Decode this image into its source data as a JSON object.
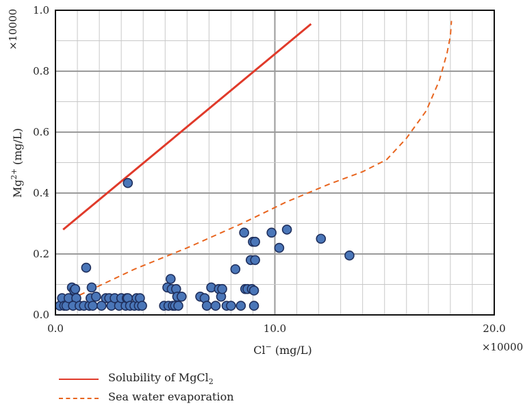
{
  "chart_data": {
    "type": "scatter",
    "xlabel_main": "Cl",
    "xlabel_sup": "−",
    "xlabel_unit": " (mg/L)",
    "ylabel_main": "Mg",
    "ylabel_sup": "2+",
    "ylabel_unit": " (mg/L)",
    "x_multiplier": "×10000",
    "y_multiplier": "×10000",
    "xlim": [
      0,
      20
    ],
    "ylim": [
      0,
      1.0
    ],
    "x_ticks": [
      "0.0",
      "10.0",
      "20.0"
    ],
    "y_ticks": [
      "0.0",
      "0.2",
      "0.4",
      "0.6",
      "0.8",
      "1.0"
    ],
    "grid": true,
    "colors": {
      "points": "#4a76b8",
      "point_edge": "#1f2f5c",
      "solubility": "#e03a2a",
      "evaporation": "#e8651f",
      "grid": "#c8c8c8",
      "grid_major": "#9a9a9a"
    },
    "series": [
      {
        "name": "Solubility of MgCl2",
        "legend_main": "Solubility of MgCl",
        "legend_sub": "2",
        "style": "solid",
        "points": [
          [
            0.35,
            0.28
          ],
          [
            11.65,
            0.955
          ]
        ]
      },
      {
        "name": "Sea water evaporation",
        "legend_main": "Sea water evaporation",
        "style": "dashed",
        "points": [
          [
            1.1,
            0.065
          ],
          [
            3.6,
            0.15
          ],
          [
            6.0,
            0.22
          ],
          [
            8.5,
            0.3
          ],
          [
            10.5,
            0.37
          ],
          [
            12.5,
            0.43
          ],
          [
            14.0,
            0.47
          ],
          [
            15.1,
            0.51
          ],
          [
            16.0,
            0.58
          ],
          [
            16.9,
            0.67
          ],
          [
            17.5,
            0.77
          ],
          [
            17.85,
            0.86
          ],
          [
            18.0,
            0.915
          ],
          [
            18.05,
            0.965
          ]
        ]
      },
      {
        "name": "samples",
        "type": "scatter",
        "points": [
          [
            0.2,
            0.03
          ],
          [
            0.3,
            0.055
          ],
          [
            0.4,
            0.03
          ],
          [
            0.5,
            0.03
          ],
          [
            0.6,
            0.055
          ],
          [
            0.75,
            0.09
          ],
          [
            0.85,
            0.08
          ],
          [
            0.9,
            0.085
          ],
          [
            0.95,
            0.055
          ],
          [
            0.8,
            0.03
          ],
          [
            1.1,
            0.03
          ],
          [
            1.3,
            0.03
          ],
          [
            1.4,
            0.155
          ],
          [
            1.55,
            0.03
          ],
          [
            1.6,
            0.055
          ],
          [
            1.65,
            0.09
          ],
          [
            1.7,
            0.03
          ],
          [
            1.85,
            0.06
          ],
          [
            2.1,
            0.03
          ],
          [
            2.3,
            0.055
          ],
          [
            2.45,
            0.055
          ],
          [
            2.55,
            0.03
          ],
          [
            2.7,
            0.055
          ],
          [
            2.9,
            0.03
          ],
          [
            3.0,
            0.055
          ],
          [
            3.2,
            0.03
          ],
          [
            3.25,
            0.055
          ],
          [
            3.3,
            0.055
          ],
          [
            3.4,
            0.03
          ],
          [
            3.6,
            0.03
          ],
          [
            3.7,
            0.055
          ],
          [
            3.8,
            0.03
          ],
          [
            3.85,
            0.055
          ],
          [
            3.95,
            0.03
          ],
          [
            3.3,
            0.433
          ],
          [
            4.95,
            0.03
          ],
          [
            5.1,
            0.09
          ],
          [
            5.15,
            0.03
          ],
          [
            5.25,
            0.118
          ],
          [
            5.3,
            0.085
          ],
          [
            5.35,
            0.03
          ],
          [
            5.45,
            0.03
          ],
          [
            5.5,
            0.085
          ],
          [
            5.6,
            0.03
          ],
          [
            5.55,
            0.06
          ],
          [
            5.75,
            0.06
          ],
          [
            6.6,
            0.06
          ],
          [
            6.8,
            0.055
          ],
          [
            6.9,
            0.03
          ],
          [
            7.1,
            0.09
          ],
          [
            7.3,
            0.03
          ],
          [
            7.45,
            0.085
          ],
          [
            7.55,
            0.06
          ],
          [
            7.6,
            0.085
          ],
          [
            7.8,
            0.03
          ],
          [
            8.0,
            0.03
          ],
          [
            8.2,
            0.15
          ],
          [
            8.45,
            0.03
          ],
          [
            8.6,
            0.27
          ],
          [
            8.65,
            0.085
          ],
          [
            8.75,
            0.085
          ],
          [
            8.9,
            0.18
          ],
          [
            8.95,
            0.085
          ],
          [
            9.05,
            0.08
          ],
          [
            9.0,
            0.24
          ],
          [
            9.1,
            0.24
          ],
          [
            9.1,
            0.18
          ],
          [
            9.05,
            0.03
          ],
          [
            9.85,
            0.27
          ],
          [
            10.2,
            0.22
          ],
          [
            10.55,
            0.28
          ],
          [
            12.1,
            0.25
          ],
          [
            13.4,
            0.195
          ]
        ]
      }
    ]
  }
}
